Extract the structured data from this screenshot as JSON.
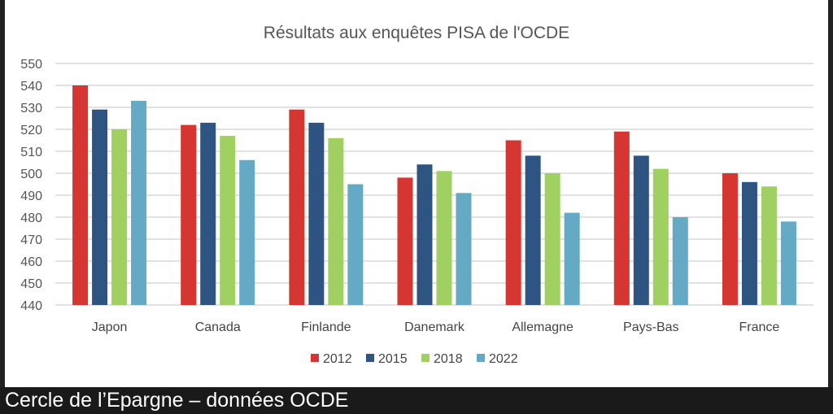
{
  "chart_data": {
    "type": "bar",
    "title": "Résultats aux enquêtes PISA de l'OCDE",
    "xlabel": "",
    "ylabel": "",
    "ylim": [
      440,
      550
    ],
    "yticks": [
      440,
      450,
      460,
      470,
      480,
      490,
      500,
      510,
      520,
      530,
      540,
      550
    ],
    "grid": true,
    "legend": "bottom",
    "categories": [
      "Japon",
      "Canada",
      "Finlande",
      "Danemark",
      "Allemagne",
      "Pays-Bas",
      "France"
    ],
    "series": [
      {
        "name": "2012",
        "color": "#d63631",
        "values": [
          540,
          522,
          529,
          498,
          515,
          519,
          500
        ]
      },
      {
        "name": "2015",
        "color": "#2e5581",
        "values": [
          529,
          523,
          523,
          504,
          508,
          508,
          496
        ]
      },
      {
        "name": "2018",
        "color": "#a0cf62",
        "values": [
          520,
          517,
          516,
          501,
          500,
          502,
          494
        ]
      },
      {
        "name": "2022",
        "color": "#64aac4",
        "values": [
          533,
          506,
          495,
          491,
          482,
          480,
          478
        ]
      }
    ]
  },
  "footer": {
    "caption": "Cercle de l’Epargne – données OCDE"
  }
}
